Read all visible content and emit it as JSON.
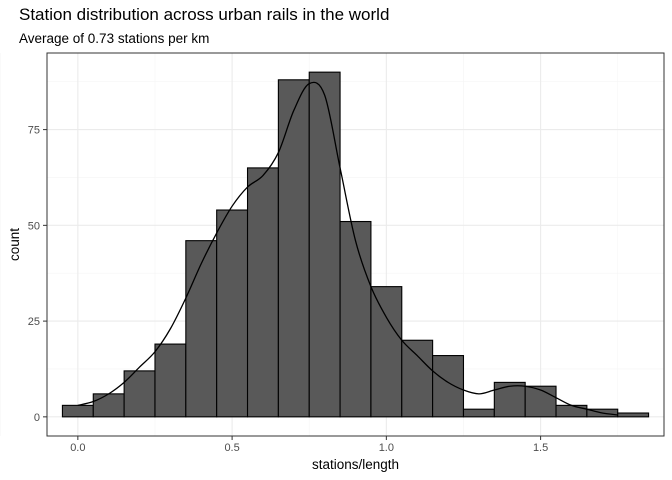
{
  "chart_data": {
    "type": "bar",
    "subtype": "histogram-with-density",
    "title": "Station distribution across urban rails in the world",
    "subtitle": "Average of 0.73 stations per km",
    "xlabel": "stations/length",
    "ylabel": "count",
    "xlim": [
      -0.1,
      1.9
    ],
    "ylim": [
      -5,
      95
    ],
    "x_ticks": [
      0.0,
      0.5,
      1.0,
      1.5
    ],
    "x_tick_labels": [
      "0.0",
      "0.5",
      "1.0",
      "1.5"
    ],
    "y_ticks": [
      0,
      25,
      50,
      75
    ],
    "y_tick_labels": [
      "0",
      "25",
      "50",
      "75"
    ],
    "grid": true,
    "bin_width": 0.1,
    "bin_centers": [
      0.0,
      0.1,
      0.2,
      0.3,
      0.4,
      0.5,
      0.6,
      0.7,
      0.8,
      0.9,
      1.0,
      1.1,
      1.2,
      1.3,
      1.4,
      1.5,
      1.6,
      1.7,
      1.8
    ],
    "values": [
      3,
      6,
      12,
      19,
      46,
      54,
      65,
      88,
      90,
      51,
      34,
      20,
      16,
      2,
      9,
      8,
      3,
      2,
      1
    ],
    "density_curve": {
      "x": [
        0.0,
        0.05,
        0.1,
        0.15,
        0.2,
        0.25,
        0.3,
        0.35,
        0.4,
        0.45,
        0.5,
        0.55,
        0.6,
        0.65,
        0.7,
        0.75,
        0.8,
        0.85,
        0.9,
        0.95,
        1.0,
        1.05,
        1.1,
        1.15,
        1.2,
        1.25,
        1.3,
        1.35,
        1.4,
        1.45,
        1.5,
        1.55,
        1.6,
        1.65,
        1.7,
        1.75
      ],
      "y": [
        3,
        4,
        6,
        9,
        13,
        17,
        23,
        31,
        40,
        48,
        55,
        60,
        63,
        69,
        80,
        87,
        84,
        65,
        46,
        34,
        26,
        20,
        16,
        12,
        9,
        7,
        6,
        7,
        8,
        8,
        7,
        5,
        3,
        2,
        1,
        0.5
      ]
    },
    "colors": {
      "bar_fill": "#595959",
      "bar_stroke": "#000000",
      "curve": "#000000",
      "grid_major": "#ebebeb",
      "grid_minor": "#f5f5f5",
      "panel_border": "#333333"
    }
  }
}
